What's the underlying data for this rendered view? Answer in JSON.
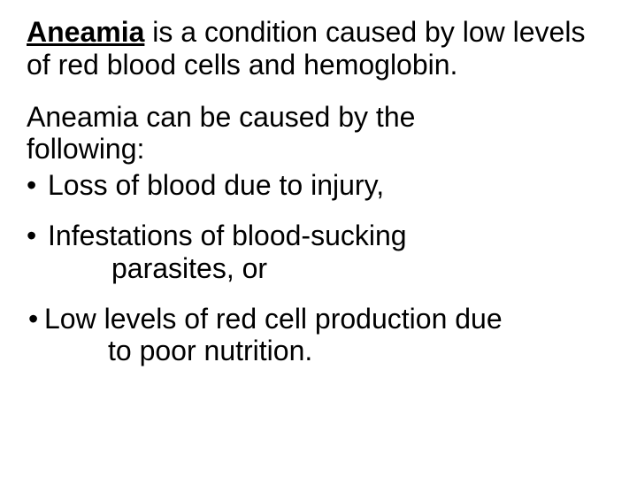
{
  "colors": {
    "background": "#ffffff",
    "text": "#000000"
  },
  "typography": {
    "font_family": "Comic Sans MS",
    "font_size_pt": 32,
    "line_height": 1.15
  },
  "intro": {
    "term": "Aneamia",
    "rest": " is a condition caused by low levels of red blood cells and hemoglobin."
  },
  "causes_lead_line1": "Aneamia can be caused by the",
  "causes_lead_line2": "following:",
  "causes": [
    {
      "line1": "Loss of blood due to injury,",
      "line2": ""
    },
    {
      "line1": "Infestations of blood-sucking",
      "line2": "parasites, or"
    },
    {
      "line1": "Low levels of red cell production due",
      "line2": "to poor nutrition."
    }
  ],
  "bullet_glyph": "•"
}
